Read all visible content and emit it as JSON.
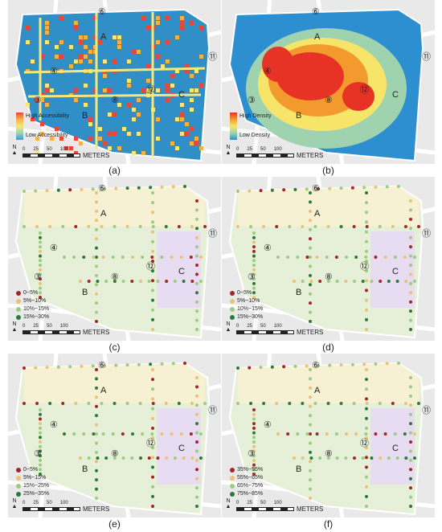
{
  "panels": [
    {
      "id": "a",
      "caption": "(a)",
      "type": "heatmap-grid",
      "legend": {
        "high": "High Accessibility",
        "low": "Low Accessibility",
        "colors": [
          "#e8473b",
          "#f3b248",
          "#f5e77a",
          "#9fd3b0",
          "#3b9ad6"
        ]
      }
    },
    {
      "id": "b",
      "caption": "(b)",
      "type": "density",
      "legend": {
        "high": "High Density",
        "low": "Low Density",
        "colors": [
          "#e63326",
          "#f39a2e",
          "#f7e56a",
          "#9fd3b0",
          "#2e8fd0"
        ]
      }
    },
    {
      "id": "c",
      "caption": "(c)",
      "type": "dots",
      "legend": [
        {
          "label": "0~5%",
          "color": "#a0272a"
        },
        {
          "label": "5%~10%",
          "color": "#e9c27a"
        },
        {
          "label": "10%~15%",
          "color": "#9ccc84"
        },
        {
          "label": "15%~30%",
          "color": "#2c7a3a"
        }
      ]
    },
    {
      "id": "d",
      "caption": "(d)",
      "type": "dots",
      "legend": [
        {
          "label": "0~5%",
          "color": "#a0272a"
        },
        {
          "label": "5%~10%",
          "color": "#e9c27a"
        },
        {
          "label": "10%~15%",
          "color": "#9ccc84"
        },
        {
          "label": "15%~30%",
          "color": "#2c7a3a"
        }
      ]
    },
    {
      "id": "e",
      "caption": "(e)",
      "type": "dots",
      "legend": [
        {
          "label": "0~5%",
          "color": "#a0272a"
        },
        {
          "label": "5%~15%",
          "color": "#e9c27a"
        },
        {
          "label": "15%~25%",
          "color": "#9ccc84"
        },
        {
          "label": "25%~35%",
          "color": "#2c7a3a"
        }
      ]
    },
    {
      "id": "f",
      "caption": "(f)",
      "type": "dots",
      "legend": [
        {
          "label": "35%~55%",
          "color": "#a0272a"
        },
        {
          "label": "55%~65%",
          "color": "#e9c27a"
        },
        {
          "label": "65%~75%",
          "color": "#9ccc84"
        },
        {
          "label": "75%~85%",
          "color": "#2c7a3a"
        }
      ]
    }
  ],
  "map_labels": {
    "zone_a": "A",
    "zone_b": "B",
    "zone_c": "C",
    "n4": "④",
    "n3": "③",
    "n6": "⑥",
    "n8": "⑧",
    "n11": "⑪",
    "n12": "⑫"
  },
  "scale": {
    "ticks": [
      "0",
      "25",
      "50",
      "100"
    ],
    "unit": "METERS"
  },
  "north": "N",
  "colors": {
    "zone_a": "#f7f1d3",
    "zone_b": "#e6f0d8",
    "zone_c": "#e7dcf1",
    "background": "#e9e9e9",
    "road": "#ffffff"
  }
}
